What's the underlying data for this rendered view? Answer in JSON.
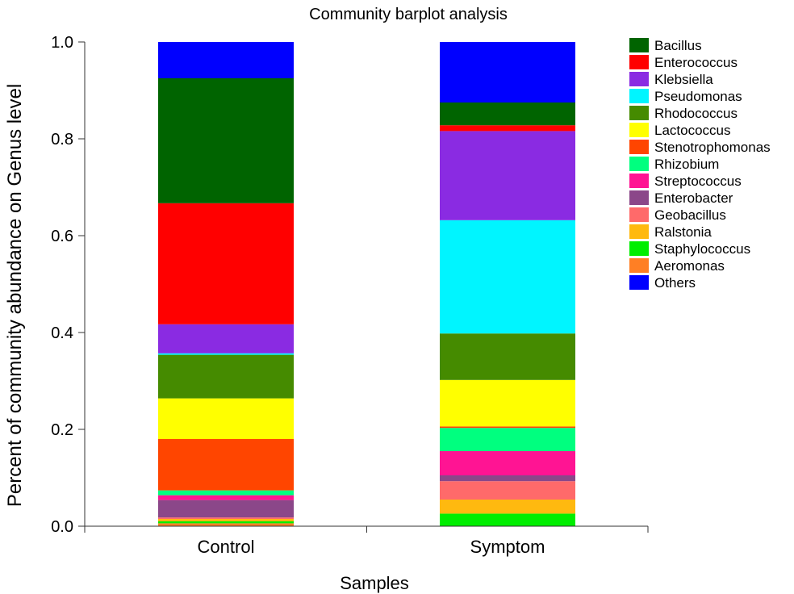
{
  "chart_data": {
    "type": "bar",
    "stacked": true,
    "title": "Community barplot analysis",
    "xlabel": "Samples",
    "ylabel": "Percent of community abundance on Genus level",
    "ylim": [
      0,
      1
    ],
    "yticks": [
      "0.0",
      "0.2",
      "0.4",
      "0.6",
      "0.8",
      "1.0"
    ],
    "grid": false,
    "legend_position": "right",
    "categories": [
      "Control",
      "Symptom"
    ],
    "series": [
      {
        "name": "Aeromonas",
        "color": "#ff7f24",
        "values": [
          0.006,
          0.0
        ]
      },
      {
        "name": "Staphylococcus",
        "color": "#00ee00",
        "values": [
          0.004,
          0.026
        ]
      },
      {
        "name": "Ralstonia",
        "color": "#ffb90f",
        "values": [
          0.005,
          0.029
        ]
      },
      {
        "name": "Geobacillus",
        "color": "#ff6a6a",
        "values": [
          0.003,
          0.038
        ]
      },
      {
        "name": "Enterobacter",
        "color": "#8b4789",
        "values": [
          0.036,
          0.012
        ]
      },
      {
        "name": "Streptococcus",
        "color": "#ff1493",
        "values": [
          0.01,
          0.05
        ]
      },
      {
        "name": "Rhizobium",
        "color": "#00ff7f",
        "values": [
          0.01,
          0.048
        ]
      },
      {
        "name": "Stenotrophomonas",
        "color": "#ff4500",
        "values": [
          0.106,
          0.003
        ]
      },
      {
        "name": "Lactococcus",
        "color": "#ffff00",
        "values": [
          0.084,
          0.096
        ]
      },
      {
        "name": "Rhodococcus",
        "color": "#458b00",
        "values": [
          0.09,
          0.096
        ]
      },
      {
        "name": "Pseudomonas",
        "color": "#00f5ff",
        "values": [
          0.003,
          0.234
        ]
      },
      {
        "name": "Klebsiella",
        "color": "#8a2be2",
        "values": [
          0.06,
          0.184
        ]
      },
      {
        "name": "Enterococcus",
        "color": "#ff0000",
        "values": [
          0.25,
          0.012
        ]
      },
      {
        "name": "Bacillus",
        "color": "#006400",
        "values": [
          0.258,
          0.047
        ]
      },
      {
        "name": "Others",
        "color": "#0000ff",
        "values": [
          0.075,
          0.125
        ]
      }
    ],
    "legend_order": [
      "Bacillus",
      "Enterococcus",
      "Klebsiella",
      "Pseudomonas",
      "Rhodococcus",
      "Lactococcus",
      "Stenotrophomonas",
      "Rhizobium",
      "Streptococcus",
      "Enterobacter",
      "Geobacillus",
      "Ralstonia",
      "Staphylococcus",
      "Aeromonas",
      "Others"
    ]
  }
}
